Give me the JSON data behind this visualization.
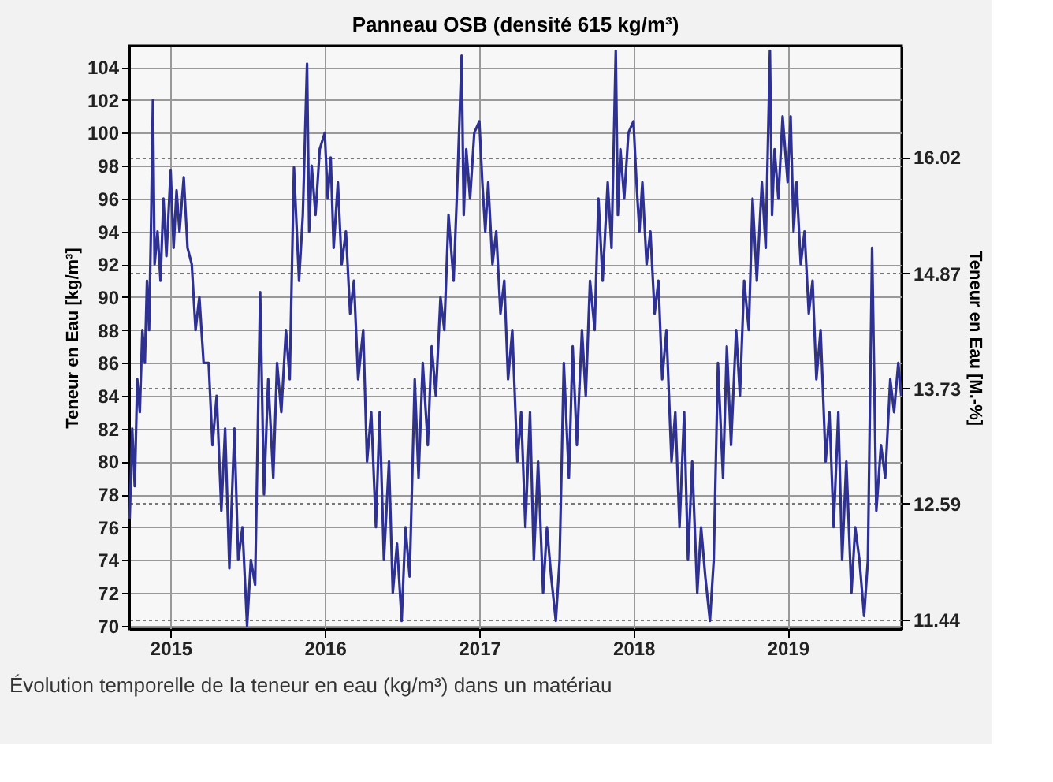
{
  "chart_data": {
    "type": "line",
    "title": "Panneau OSB (densité 615 kg/m³)",
    "ylabel": "Teneur en Eau [kg/m³]",
    "y2label": "Teneur en Eau [M.-%]",
    "annotations": [
      "Évolution temporelle de la teneur en eau (kg/m³) dans un matériau"
    ],
    "xlim": [
      "2014-09-25",
      "2019-09-28"
    ],
    "xticks": [
      "2015",
      "2016",
      "2017",
      "2018",
      "2019"
    ],
    "ylim": [
      69.8,
      105.3
    ],
    "yticks": [
      70,
      72,
      74,
      76,
      78,
      80,
      82,
      84,
      86,
      88,
      90,
      92,
      94,
      96,
      98,
      100,
      102,
      104
    ],
    "y2lim": [
      11.35,
      17.12
    ],
    "y2ticks": [
      11.44,
      12.59,
      13.73,
      14.87,
      16.02
    ],
    "grid": true,
    "line_style": "solid",
    "marker": "none",
    "x": [
      "2014-09-26",
      "2014-10-02",
      "2014-10-08",
      "2014-10-14",
      "2014-10-20",
      "2014-10-26",
      "2014-11-01",
      "2014-11-06",
      "2014-11-11",
      "2014-11-16",
      "2014-11-20",
      "2014-11-24",
      "2014-12-01",
      "2014-12-08",
      "2014-12-15",
      "2014-12-22",
      "2015-01-01",
      "2015-01-08",
      "2015-01-15",
      "2015-01-22",
      "2015-02-01",
      "2015-02-10",
      "2015-02-20",
      "2015-03-01",
      "2015-03-10",
      "2015-03-20",
      "2015-04-01",
      "2015-04-10",
      "2015-04-20",
      "2015-05-01",
      "2015-05-10",
      "2015-05-20",
      "2015-06-01",
      "2015-06-10",
      "2015-06-20",
      "2015-07-01",
      "2015-07-10",
      "2015-07-20",
      "2015-08-01",
      "2015-08-10",
      "2015-08-20",
      "2015-09-01",
      "2015-09-10",
      "2015-09-20",
      "2015-10-01",
      "2015-10-10",
      "2015-10-20",
      "2015-11-01",
      "2015-11-10",
      "2015-11-20",
      "2015-11-25",
      "2015-12-01",
      "2015-12-10",
      "2015-12-20",
      "2016-01-01",
      "2016-01-08",
      "2016-01-15",
      "2016-01-22",
      "2016-02-01",
      "2016-02-10",
      "2016-02-20",
      "2016-03-01",
      "2016-03-10",
      "2016-03-20",
      "2016-04-01",
      "2016-04-10",
      "2016-04-20",
      "2016-05-01",
      "2016-05-10",
      "2016-05-20",
      "2016-06-01",
      "2016-06-10",
      "2016-06-20",
      "2016-07-01",
      "2016-07-10",
      "2016-07-20",
      "2016-08-01",
      "2016-08-10",
      "2016-08-20",
      "2016-09-01",
      "2016-09-10",
      "2016-09-20",
      "2016-10-01",
      "2016-10-10",
      "2016-10-20",
      "2016-11-01",
      "2016-11-10",
      "2016-11-20",
      "2016-11-25",
      "2016-12-01",
      "2016-12-10",
      "2016-12-20",
      "2017-01-01",
      "2017-01-08",
      "2017-01-15",
      "2017-01-22",
      "2017-02-01",
      "2017-02-10",
      "2017-02-20",
      "2017-03-01",
      "2017-03-10",
      "2017-03-20",
      "2017-04-01",
      "2017-04-10",
      "2017-04-20",
      "2017-05-01",
      "2017-05-10",
      "2017-05-20",
      "2017-06-01",
      "2017-06-10",
      "2017-06-20",
      "2017-07-01",
      "2017-07-10",
      "2017-07-20",
      "2017-08-01",
      "2017-08-10",
      "2017-08-20",
      "2017-09-01",
      "2017-09-10",
      "2017-09-20",
      "2017-10-01",
      "2017-10-10",
      "2017-10-20",
      "2017-11-01",
      "2017-11-10",
      "2017-11-20",
      "2017-11-25",
      "2017-12-01",
      "2017-12-10",
      "2017-12-20",
      "2018-01-01",
      "2018-01-08",
      "2018-01-15",
      "2018-01-22",
      "2018-02-01",
      "2018-02-10",
      "2018-02-20",
      "2018-03-01",
      "2018-03-10",
      "2018-03-20",
      "2018-04-01",
      "2018-04-10",
      "2018-04-20",
      "2018-05-01",
      "2018-05-10",
      "2018-05-20",
      "2018-06-01",
      "2018-06-10",
      "2018-06-20",
      "2018-07-01",
      "2018-07-10",
      "2018-07-20",
      "2018-08-01",
      "2018-08-10",
      "2018-08-20",
      "2018-09-01",
      "2018-09-10",
      "2018-09-20",
      "2018-10-01",
      "2018-10-10",
      "2018-10-20",
      "2018-11-01",
      "2018-11-10",
      "2018-11-20",
      "2018-11-25",
      "2018-12-01",
      "2018-12-10",
      "2018-12-20",
      "2019-01-01",
      "2019-01-08",
      "2019-01-15",
      "2019-01-22",
      "2019-02-01",
      "2019-02-10",
      "2019-02-20",
      "2019-03-01",
      "2019-03-10",
      "2019-03-20",
      "2019-04-01",
      "2019-04-10",
      "2019-04-20",
      "2019-05-01",
      "2019-05-10",
      "2019-05-20",
      "2019-06-01",
      "2019-06-10",
      "2019-06-20",
      "2019-07-01",
      "2019-07-10",
      "2019-07-20",
      "2019-07-30",
      "2019-08-10",
      "2019-08-20",
      "2019-09-01",
      "2019-09-10",
      "2019-09-20",
      "2019-09-27"
    ],
    "series": [
      {
        "color": "#2e3192",
        "values": [
          76.5,
          82,
          78.5,
          85,
          83,
          88,
          86,
          91,
          88,
          95,
          102,
          92,
          94,
          91,
          96,
          92.5,
          97.7,
          93,
          96.5,
          94,
          97.3,
          93,
          92,
          88,
          90,
          86,
          86,
          81,
          84,
          77,
          82,
          73.5,
          82,
          74,
          76,
          70,
          74,
          72.5,
          90.3,
          78,
          85,
          79,
          86,
          83,
          88,
          85,
          97.9,
          91,
          95,
          104.2,
          94,
          98,
          95,
          99,
          100,
          96,
          98.5,
          93,
          97,
          92,
          94,
          89,
          91,
          85,
          88,
          80,
          83,
          76,
          83,
          74,
          80,
          72,
          75,
          70.3,
          76,
          73,
          85,
          79,
          86,
          81,
          87,
          84,
          90,
          88,
          95,
          91,
          97,
          104.7,
          95,
          99,
          96,
          100,
          100.7,
          97,
          94,
          97,
          92,
          94,
          89,
          91,
          85,
          88,
          80,
          83,
          76,
          83,
          74,
          80,
          72,
          76,
          73,
          70.3,
          74,
          86,
          79,
          87,
          81,
          88,
          84,
          91,
          88,
          96,
          91,
          97,
          93,
          105,
          95,
          99,
          96,
          100,
          100.7,
          97,
          94,
          97,
          92,
          94,
          89,
          91,
          85,
          88,
          80,
          83,
          76,
          83,
          74,
          80,
          72,
          76,
          73,
          70.3,
          74,
          86,
          79,
          87,
          81,
          88,
          84,
          91,
          88,
          96,
          91,
          97,
          93,
          105,
          95,
          99,
          96,
          101,
          97,
          101,
          94,
          97,
          92,
          94,
          89,
          91,
          85,
          88,
          80,
          83,
          76,
          83,
          74,
          80,
          72,
          76,
          74,
          70.6,
          74,
          93,
          77,
          81,
          79,
          85,
          83,
          86,
          84
        ]
      }
    ]
  }
}
